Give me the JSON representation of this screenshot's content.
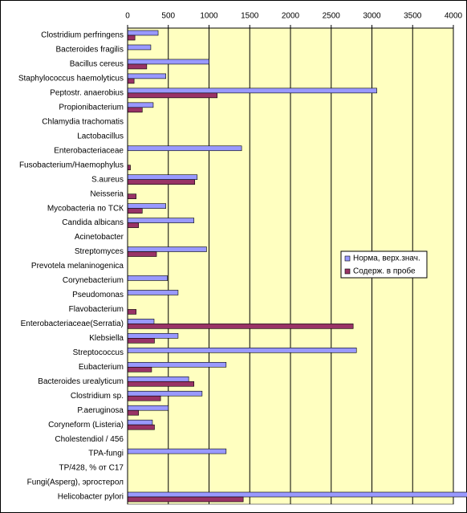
{
  "chart_data": {
    "type": "bar",
    "orientation": "horizontal",
    "categories": [
      "Clostridium perfringens",
      "Bacteroides fragilis",
      "Bacillus cereus",
      "Staphylococcus haemolyticus",
      "Peptostr. anaerobius",
      "Propionibacterium",
      "Chlamydia trachomatis",
      "Lactobacillus",
      "Enterobacteriaceae",
      "Fusobacterium/Haemophylus",
      "S.aureus",
      "Neisseria",
      "Mycobacteria по ТСК",
      "Candida albicans",
      "Acinetobacter",
      "Streptomyces",
      "Prevotela melaninogenica",
      "Corynebacterium",
      "Pseudomonas",
      "Flavobacterium",
      "Enterobacteriaceae(Serratia)",
      "Klebsiella",
      "Streptococcus",
      "Eubacterium",
      "Bacteroides urealyticum",
      "Clostridium  sp.",
      "P.aeruginosa",
      "Coryneform (Listeria)",
      "Cholestendiol / 456",
      "TPA-fungi",
      "TP/428,  % от C17",
      "Fungi(Asperg), эргостерол",
      "Helicobacter pylori"
    ],
    "series": [
      {
        "name": "Норма, верх.знач.",
        "color": "#9999ff",
        "values": [
          375,
          285,
          1000,
          470,
          3060,
          315,
          null,
          null,
          1400,
          null,
          855,
          null,
          470,
          815,
          null,
          970,
          null,
          490,
          620,
          null,
          325,
          620,
          2810,
          1210,
          750,
          915,
          500,
          305,
          null,
          1210,
          null,
          null,
          4200
        ]
      },
      {
        "name": "Содерж. в пробе",
        "color": "#993366",
        "values": [
          90,
          null,
          235,
          80,
          1100,
          180,
          null,
          null,
          null,
          35,
          825,
          105,
          180,
          135,
          null,
          355,
          null,
          null,
          null,
          105,
          2770,
          330,
          null,
          295,
          815,
          405,
          135,
          330,
          null,
          null,
          null,
          null,
          1420
        ]
      }
    ],
    "xlim": [
      0,
      4000
    ],
    "xticks": [
      0,
      500,
      1000,
      1500,
      2000,
      2500,
      3000,
      3500,
      4000
    ],
    "grid": true,
    "legend": "right"
  }
}
